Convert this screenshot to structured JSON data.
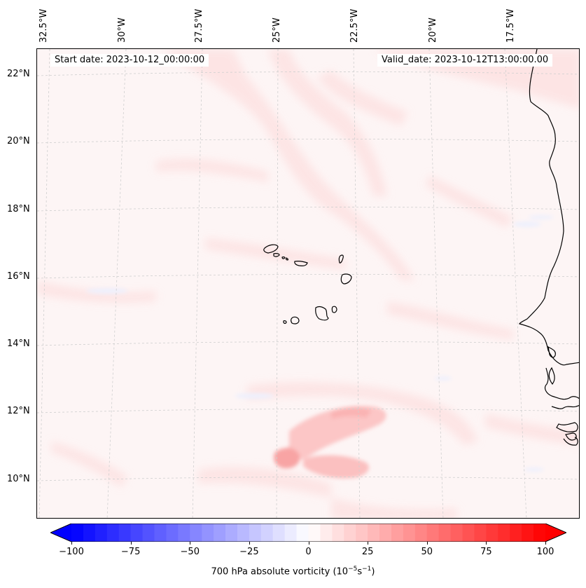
{
  "header": {
    "start_date": "Start date: 2023-10-12_00:00:00",
    "valid_date": "Valid_date: 2023-10-12T13:00:00.00"
  },
  "map": {
    "longitude_labels": [
      "32.5°W",
      "30°W",
      "27.5°W",
      "25°W",
      "22.5°W",
      "20°W",
      "17.5°W"
    ],
    "latitude_labels": [
      "22°N",
      "20°N",
      "18°N",
      "16°N",
      "14°N",
      "12°N",
      "10°N"
    ],
    "field": "700 hPa absolute vorticity",
    "colors": {
      "positive": "#ff0000",
      "negative": "#0000ff",
      "neutral": "#ffffff",
      "coast": "#000000"
    }
  },
  "colorbar": {
    "ticks": [
      "−100",
      "−75",
      "−50",
      "−25",
      "0",
      "25",
      "50",
      "75",
      "100"
    ],
    "min": -100,
    "max": 100,
    "label_main": "700 hPa absolute vorticity (10",
    "label_exp1": "−5",
    "label_mid": "s",
    "label_exp2": "−1",
    "label_end": ")"
  }
}
